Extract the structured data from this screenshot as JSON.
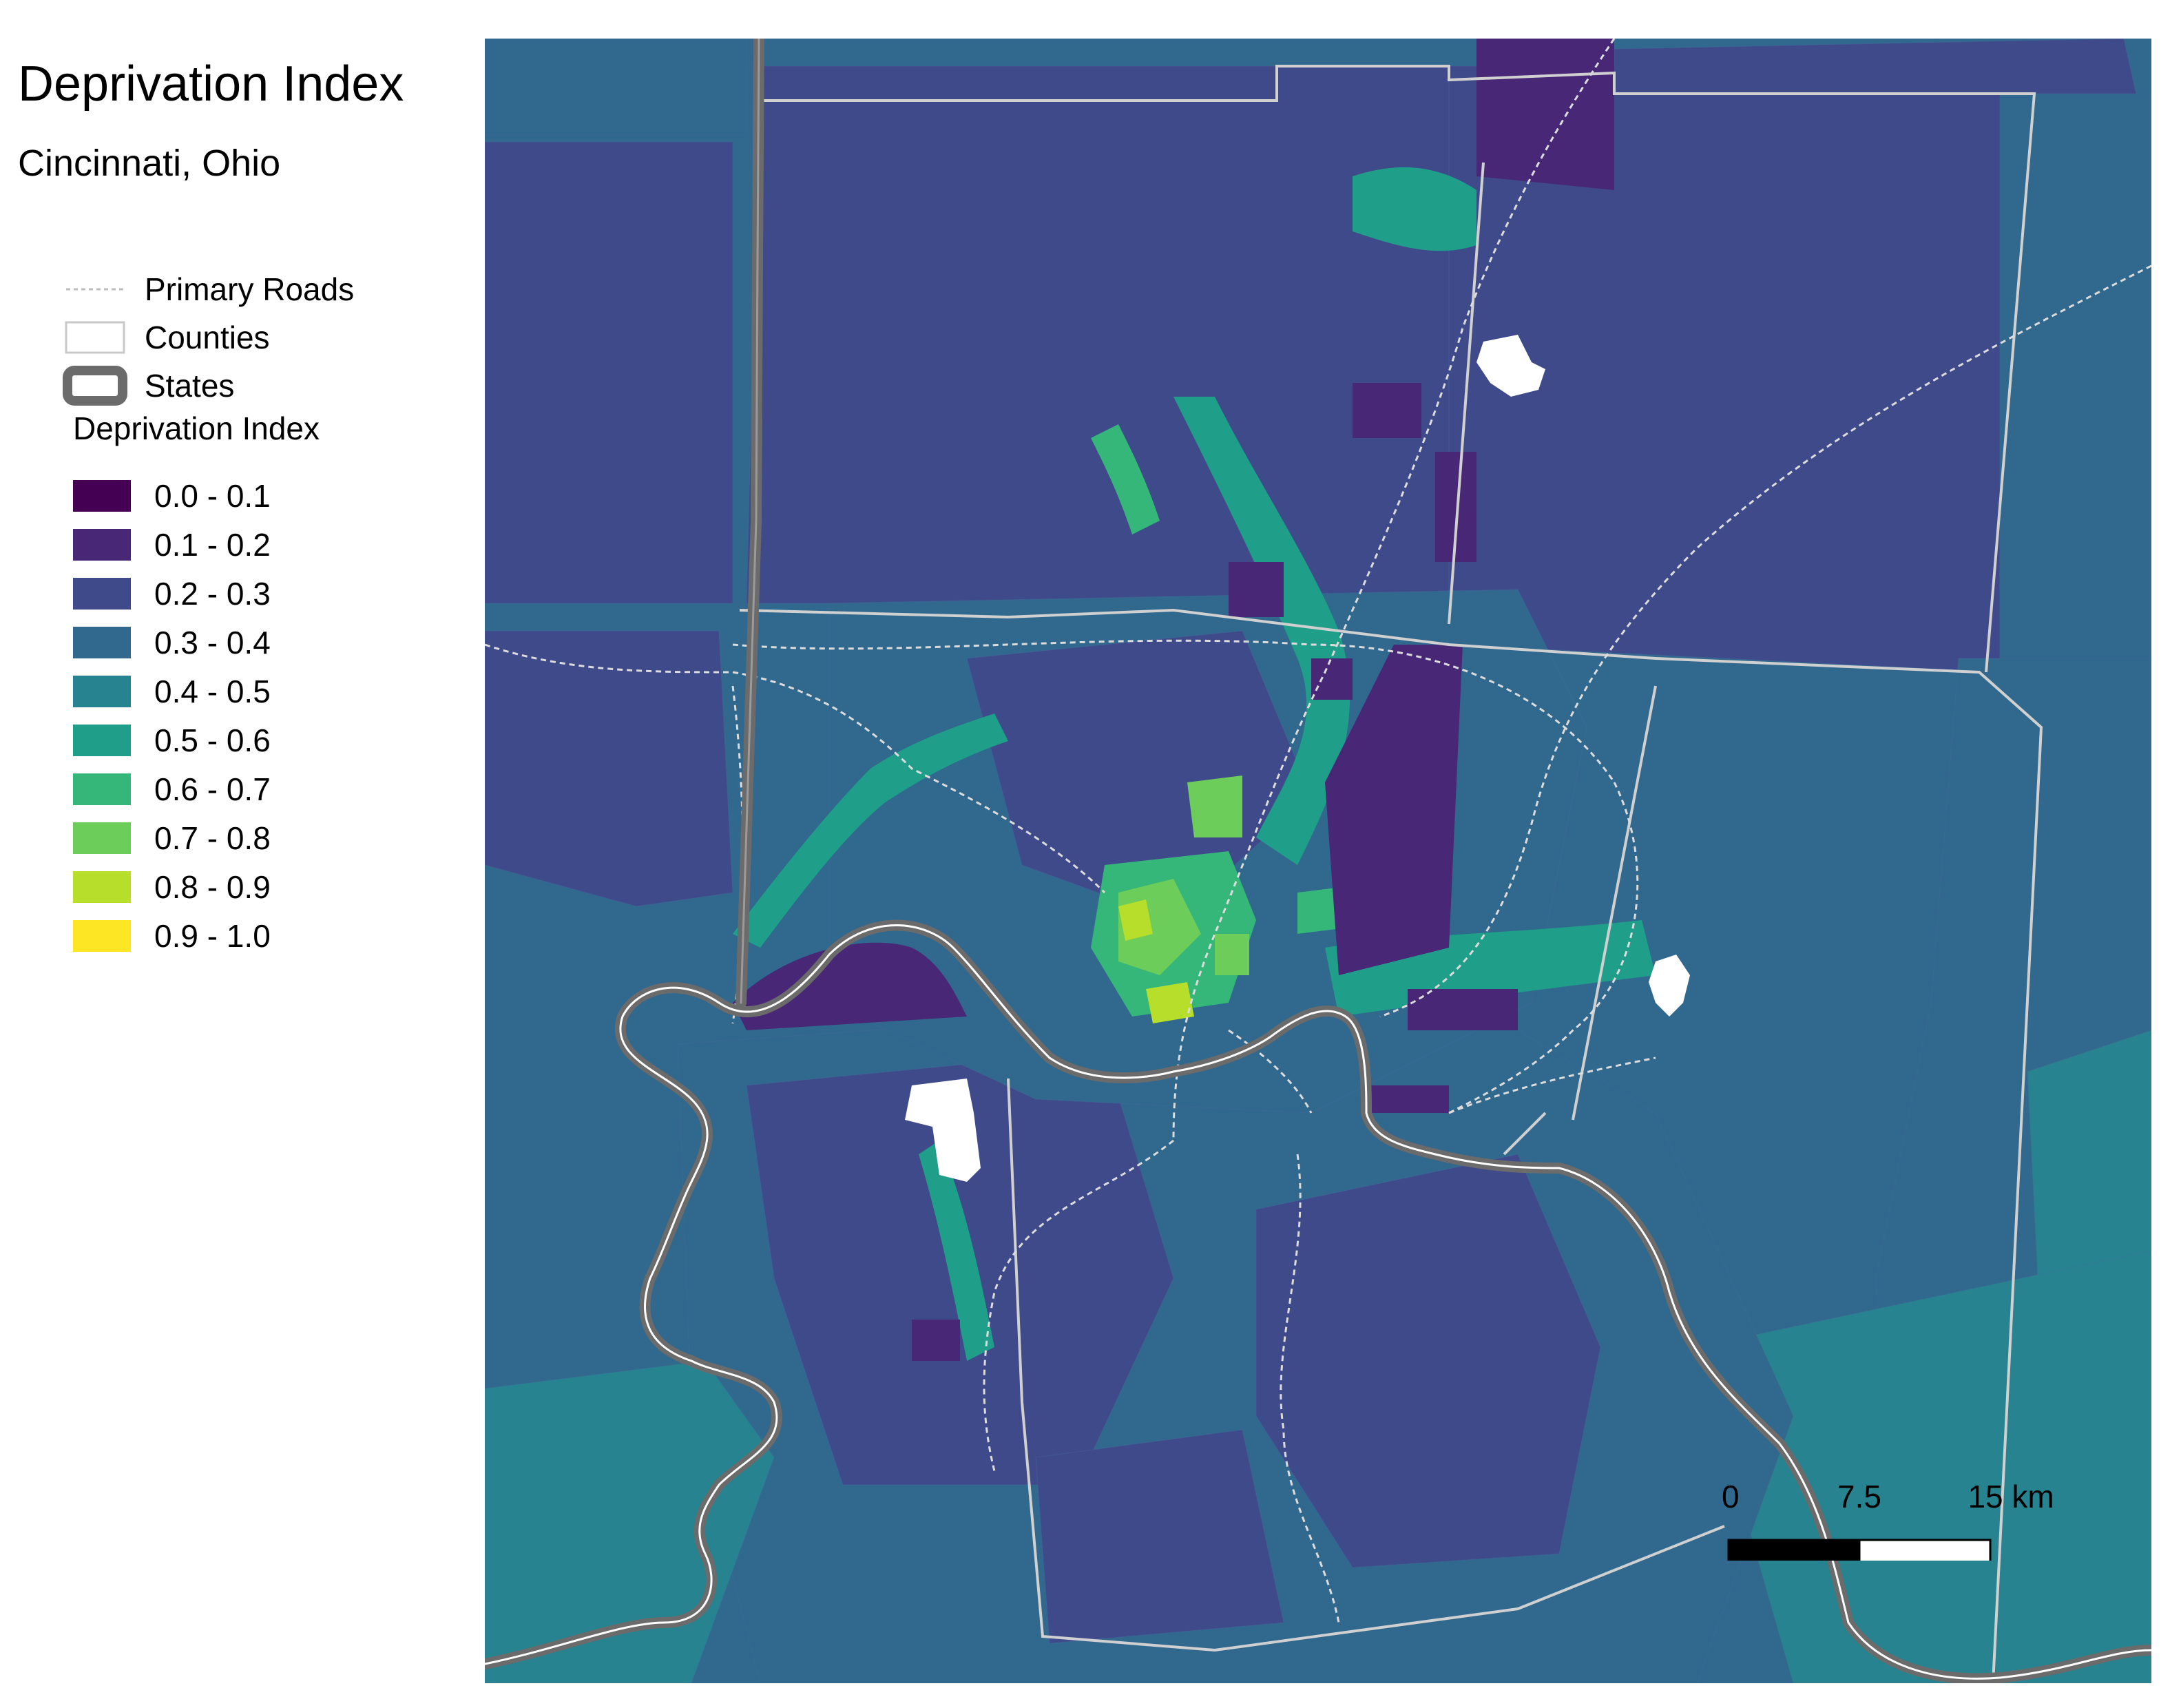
{
  "title": "Deprivation Index",
  "subtitle": "Cincinnati, Ohio",
  "legend": {
    "layers": [
      {
        "label": "Primary Roads",
        "symbol": "dashed-line",
        "color": "#bdbdbd"
      },
      {
        "label": "Counties",
        "symbol": "outline-box",
        "color": "#c8c8c8"
      },
      {
        "label": "States",
        "symbol": "thick-grey-box",
        "color": "#6b6b6b"
      }
    ],
    "classes_title": "Deprivation Index",
    "classes": [
      {
        "label": "0.0 - 0.1",
        "color": "#440154"
      },
      {
        "label": "0.1 - 0.2",
        "color": "#482777"
      },
      {
        "label": "0.2 - 0.3",
        "color": "#3f4a8a"
      },
      {
        "label": "0.3 - 0.4",
        "color": "#31688e"
      },
      {
        "label": "0.4 - 0.5",
        "color": "#26838f"
      },
      {
        "label": "0.5 - 0.6",
        "color": "#1f9e89"
      },
      {
        "label": "0.6 - 0.7",
        "color": "#35b779"
      },
      {
        "label": "0.7 - 0.8",
        "color": "#6ccd5a"
      },
      {
        "label": "0.8 - 0.9",
        "color": "#b6de2b"
      },
      {
        "label": "0.9 - 1.0",
        "color": "#fde725"
      }
    ]
  },
  "scale_bar": {
    "labels": [
      "0",
      "7.5",
      "15 km"
    ]
  },
  "map": {
    "background_color": "#31688e",
    "state_line_color": "#6b6b6b",
    "county_line_color": "#d0d0d0",
    "road_color": "#d8d8d8",
    "no_data_color": "#ffffff"
  }
}
